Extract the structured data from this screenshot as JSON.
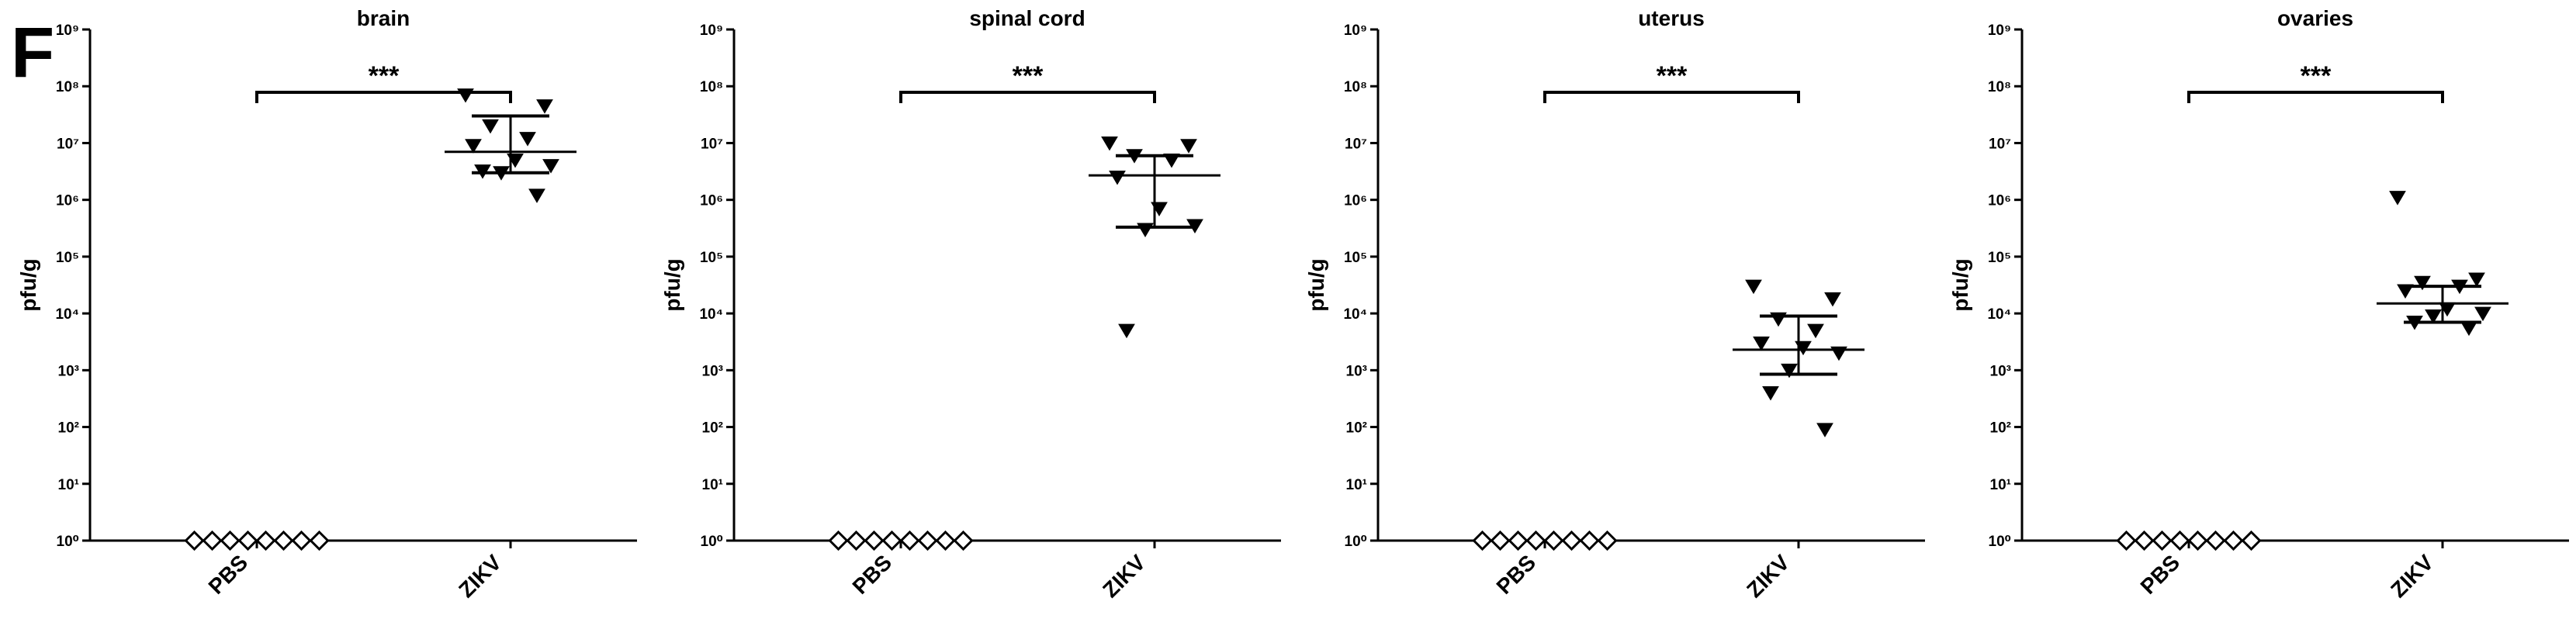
{
  "figure": {
    "panel_letter": "F"
  },
  "chart_data": [
    {
      "type": "scatter",
      "title": "brain",
      "ylabel": "pfu/g",
      "xlabel": "",
      "y_scale": "log10",
      "ylim": [
        1,
        1000000000
      ],
      "y_ticks": [
        "10⁰",
        "10¹",
        "10²",
        "10³",
        "10⁴",
        "10⁵",
        "10⁶",
        "10⁷",
        "10⁸",
        "10⁹"
      ],
      "categories": [
        "PBS",
        "ZIKV"
      ],
      "groups": [
        {
          "name": "PBS",
          "marker": "diamond-open",
          "values": [
            1,
            1,
            1,
            1,
            1,
            1,
            1,
            1
          ]
        },
        {
          "name": "ZIKV",
          "marker": "triangle-down-filled",
          "values": [
            70000000,
            45000000,
            20000000,
            12000000,
            9000000,
            5000000,
            4000000,
            3000000,
            3200000,
            1200000
          ],
          "median": 7000000,
          "iqr": [
            3000000,
            30000000
          ]
        }
      ],
      "significance": {
        "between": [
          "PBS",
          "ZIKV"
        ],
        "label": "***"
      }
    },
    {
      "type": "scatter",
      "title": "spinal cord",
      "ylabel": "pfu/g",
      "xlabel": "",
      "y_scale": "log10",
      "ylim": [
        1,
        1000000000
      ],
      "y_ticks": [
        "10⁰",
        "10¹",
        "10²",
        "10³",
        "10⁴",
        "10⁵",
        "10⁶",
        "10⁷",
        "10⁸",
        "10⁹"
      ],
      "categories": [
        "PBS",
        "ZIKV"
      ],
      "groups": [
        {
          "name": "PBS",
          "marker": "diamond-open",
          "values": [
            1,
            1,
            1,
            1,
            1,
            1,
            1,
            1
          ]
        },
        {
          "name": "ZIKV",
          "marker": "triangle-down-filled",
          "values": [
            10000000,
            9000000,
            6000000,
            5000000,
            2500000,
            700000,
            350000,
            300000,
            5000
          ],
          "median": 2700000,
          "iqr": [
            330000,
            6000000
          ]
        }
      ],
      "significance": {
        "between": [
          "PBS",
          "ZIKV"
        ],
        "label": "***"
      }
    },
    {
      "type": "scatter",
      "title": "uterus",
      "ylabel": "pfu/g",
      "xlabel": "",
      "y_scale": "log10",
      "ylim": [
        1,
        1000000000
      ],
      "y_ticks": [
        "10⁰",
        "10¹",
        "10²",
        "10³",
        "10⁴",
        "10⁵",
        "10⁶",
        "10⁷",
        "10⁸",
        "10⁹"
      ],
      "categories": [
        "PBS",
        "ZIKV"
      ],
      "groups": [
        {
          "name": "PBS",
          "marker": "diamond-open",
          "values": [
            1,
            1,
            1,
            1,
            1,
            1,
            1,
            1
          ]
        },
        {
          "name": "ZIKV",
          "marker": "triangle-down-filled",
          "values": [
            30000,
            18000,
            8000,
            5000,
            3000,
            2500,
            2000,
            1000,
            400,
            90
          ],
          "median": 2300,
          "iqr": [
            850,
            9000
          ]
        }
      ],
      "significance": {
        "between": [
          "PBS",
          "ZIKV"
        ],
        "label": "***"
      }
    },
    {
      "type": "scatter",
      "title": "ovaries",
      "ylabel": "pfu/g",
      "xlabel": "",
      "y_scale": "log10",
      "ylim": [
        1,
        1000000000
      ],
      "y_ticks": [
        "10⁰",
        "10¹",
        "10²",
        "10³",
        "10⁴",
        "10⁵",
        "10⁶",
        "10⁷",
        "10⁸",
        "10⁹"
      ],
      "categories": [
        "PBS",
        "ZIKV"
      ],
      "groups": [
        {
          "name": "PBS",
          "marker": "diamond-open",
          "values": [
            1,
            1,
            1,
            1,
            1,
            1,
            1,
            1
          ]
        },
        {
          "name": "ZIKV",
          "marker": "triangle-down-filled",
          "values": [
            1100000,
            40000,
            35000,
            30000,
            25000,
            12000,
            10000,
            9000,
            7000,
            5500
          ],
          "median": 15000,
          "iqr": [
            7000,
            30000
          ]
        }
      ],
      "significance": {
        "between": [
          "PBS",
          "ZIKV"
        ],
        "label": "***"
      }
    }
  ]
}
